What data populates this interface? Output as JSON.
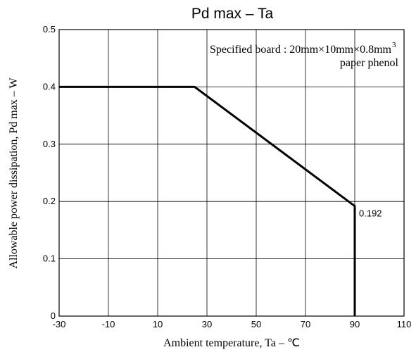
{
  "chart_data": {
    "type": "line",
    "title": "Pd max  –  Ta",
    "xlabel": "Ambient temperature, Ta  –  ℃",
    "ylabel": "Allowable power dissipation, Pd max – W",
    "xlim": [
      -30,
      110
    ],
    "ylim": [
      0,
      0.5
    ],
    "xticks": [
      -30,
      -10,
      10,
      30,
      50,
      70,
      90,
      110
    ],
    "yticks": [
      0,
      0.1,
      0.2,
      0.3,
      0.4,
      0.5
    ],
    "xtick_labels": [
      "-30",
      "-10",
      "10",
      "30",
      "50",
      "70",
      "90",
      "110"
    ],
    "ytick_labels": [
      "0",
      "0.1",
      "0.2",
      "0.3",
      "0.4",
      "0.5"
    ],
    "grid": true,
    "series": [
      {
        "x": [
          -30,
          25,
          90,
          90
        ],
        "y": [
          0.4,
          0.4,
          0.192,
          0
        ],
        "color": "#000000"
      }
    ],
    "annotations": {
      "board_line1_main": "Specified board : 20mm×10mm×0.8mm",
      "board_line1_sup": "3",
      "board_line2": "paper phenol",
      "point_label": "0.192",
      "point_label_x": 90,
      "point_label_y": 0.192
    }
  }
}
